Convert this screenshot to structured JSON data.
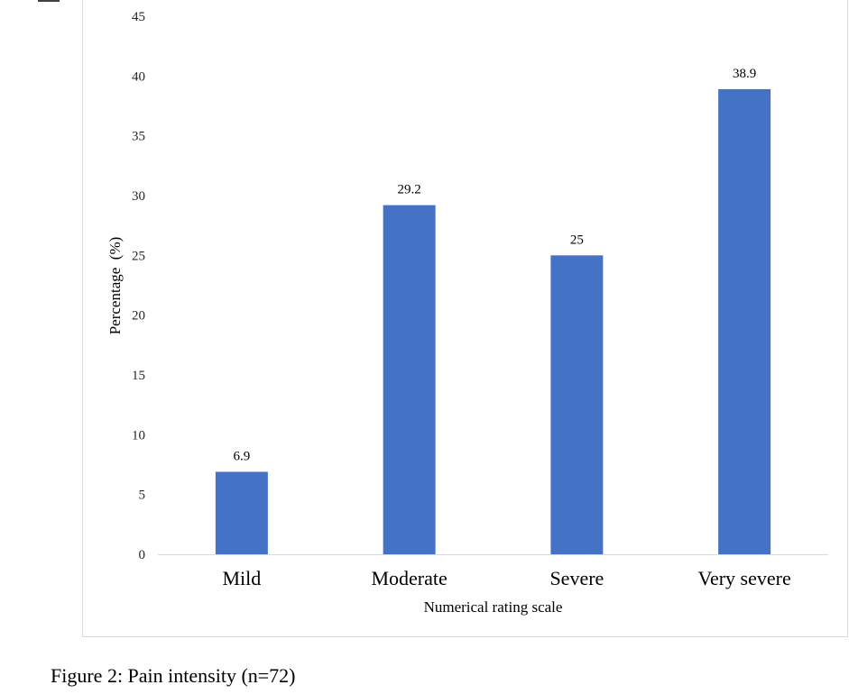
{
  "caption": "Figure 2: Pain intensity (n=72)",
  "chart_data": {
    "type": "bar",
    "categories": [
      "Mild",
      "Moderate",
      "Severe",
      "Very severe"
    ],
    "values": [
      6.9,
      29.2,
      25,
      38.9
    ],
    "data_labels": [
      "6.9",
      "29.2",
      "25",
      "38.9"
    ],
    "title": "",
    "xlabel": "Numerical rating scale",
    "ylabel": "Percentage  (%)",
    "ylim": [
      0,
      45
    ],
    "yticks": [
      0,
      5,
      10,
      15,
      20,
      25,
      30,
      35,
      40,
      45
    ],
    "grid": false,
    "legend": "none",
    "bar_color": "#4472c4"
  }
}
